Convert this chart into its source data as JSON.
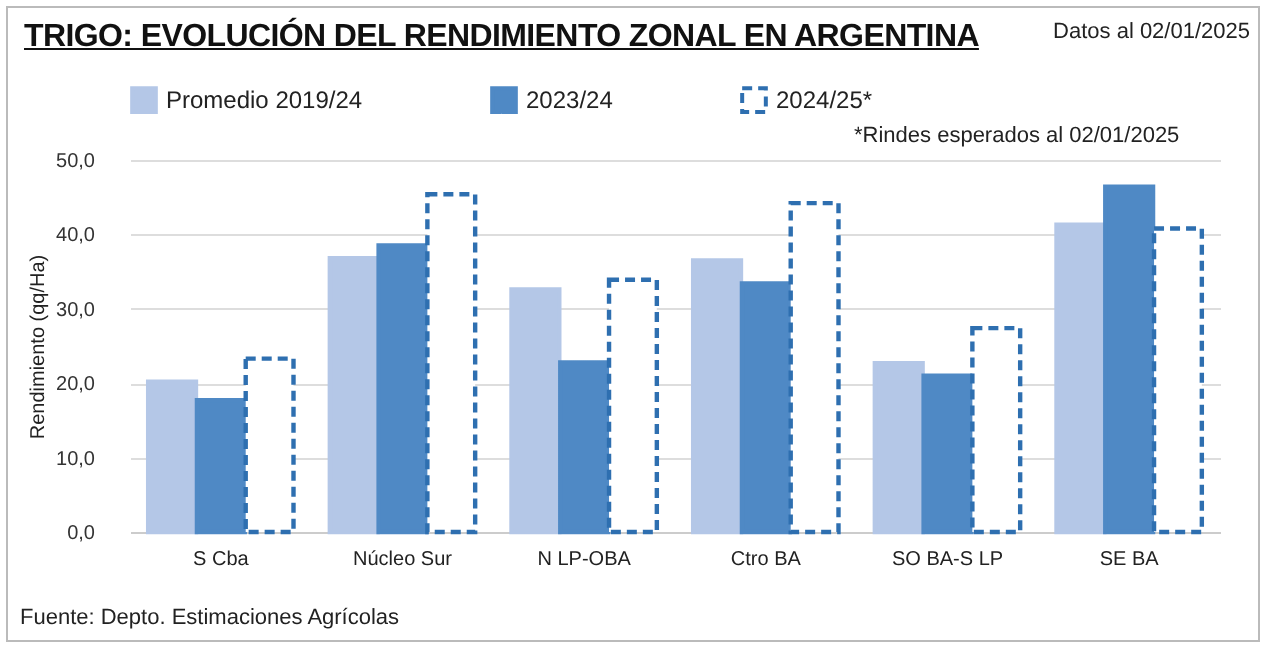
{
  "chart_data": {
    "type": "bar",
    "title": "TRIGO: EVOLUCIÓN DEL RENDIMIENTO ZONAL EN ARGENTINA",
    "ylabel": "Rendimiento (qq/Ha)",
    "annotations": [
      "Datos al 02/01/2025",
      "*Rindes esperados al 02/01/2025",
      "Fuente: Depto. Estimaciones Agrícolas"
    ],
    "categories": [
      "S Cba",
      "Núcleo Sur",
      "N LP-OBA",
      "Ctro BA",
      "SO BA-S LP",
      "SE BA"
    ],
    "series": [
      {
        "name": "Promedio 2019/24",
        "color": "#b4c7e7",
        "values": [
          20.2,
          36.8,
          32.6,
          36.5,
          22.7,
          41.3
        ]
      },
      {
        "name": "2023/24",
        "color": "#4f89c5",
        "values": [
          17.7,
          38.5,
          22.8,
          33.4,
          21.0,
          46.4
        ]
      },
      {
        "name": "2024/25*",
        "color": "#2e6fb0",
        "line_style": "dashed",
        "values": [
          23.3,
          45.4,
          33.9,
          44.2,
          27.4,
          40.8
        ]
      }
    ],
    "ylim": [
      0,
      50
    ],
    "yticks": [
      {
        "value": 0,
        "label": "0,0"
      },
      {
        "value": 10,
        "label": "10,0"
      },
      {
        "value": 20,
        "label": "20,0"
      },
      {
        "value": 30,
        "label": "30,0"
      },
      {
        "value": 40,
        "label": "40,0"
      },
      {
        "value": 50,
        "label": "50,0"
      }
    ],
    "grid": "y",
    "legend": "top"
  }
}
